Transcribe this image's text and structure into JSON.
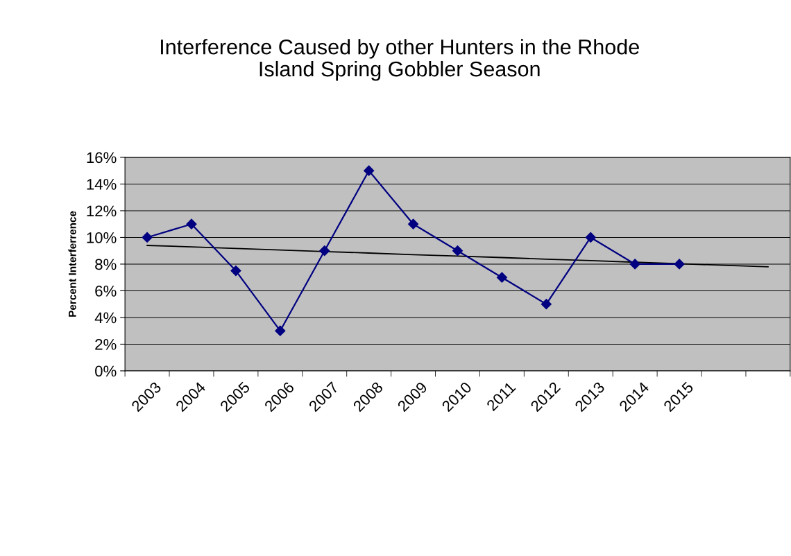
{
  "chart_data": {
    "type": "line",
    "title": "Interference Caused by other Hunters in the Rhode\nIsland Spring Gobbler Season",
    "ylabel": "Percent Interferrence",
    "categories": [
      "2003",
      "2004",
      "2005",
      "2006",
      "2007",
      "2008",
      "2009",
      "2010",
      "2011",
      "2012",
      "2013",
      "2014",
      "2015",
      null,
      null
    ],
    "series": [
      {
        "color": "#000080",
        "marker": "diamond",
        "values": [
          10,
          11,
          7.5,
          3,
          9,
          15,
          11,
          9,
          7,
          5,
          10,
          8,
          8,
          null,
          null
        ]
      },
      {
        "color": "#000000",
        "marker": "none",
        "values": [
          9.4,
          9.29,
          9.17,
          9.06,
          8.94,
          8.83,
          8.71,
          8.6,
          8.49,
          8.37,
          8.26,
          8.14,
          8.03,
          7.91,
          7.8
        ]
      }
    ],
    "ylim": [
      0,
      16
    ],
    "yticks": [
      {
        "value": 0,
        "label": "0%"
      },
      {
        "value": 2,
        "label": "2%"
      },
      {
        "value": 4,
        "label": "4%"
      },
      {
        "value": 6,
        "label": "6%"
      },
      {
        "value": 8,
        "label": "8%"
      },
      {
        "value": 10,
        "label": "10%"
      },
      {
        "value": 12,
        "label": "12%"
      },
      {
        "value": 14,
        "label": "14%"
      },
      {
        "value": 16,
        "label": "16%"
      }
    ],
    "grid": "y"
  }
}
